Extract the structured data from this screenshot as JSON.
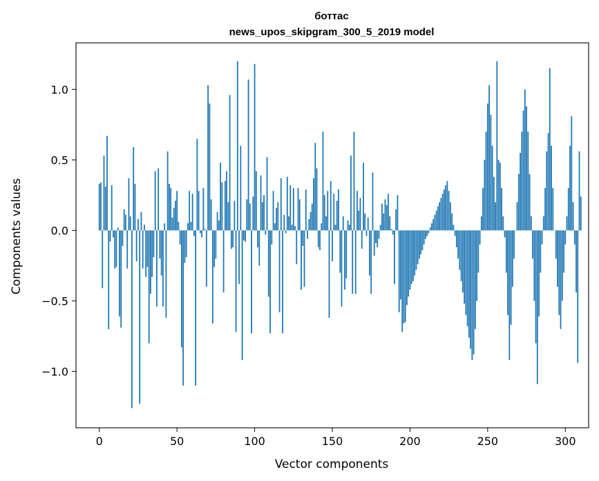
{
  "chart_data": {
    "type": "bar",
    "title": "боттас",
    "subtitle": "news_upos_skipgram_300_5_2019 model",
    "xlabel": "Vector components",
    "ylabel": "Components values",
    "xlim": [
      -15,
      315
    ],
    "ylim": [
      -1.4,
      1.33
    ],
    "xticks": [
      0,
      50,
      100,
      150,
      200,
      250,
      300
    ],
    "xtick_labels": [
      "0",
      "50",
      "100",
      "150",
      "200",
      "250",
      "300"
    ],
    "yticks": [
      -1.0,
      -0.5,
      0.0,
      0.5,
      1.0
    ],
    "ytick_labels": [
      "−1.0",
      "−0.5",
      "0.0",
      "0.5",
      "1.0"
    ],
    "grid": false,
    "bar_color": "#1f77b4",
    "values": [
      0.33,
      0.34,
      -0.41,
      0.53,
      0.31,
      0.67,
      -0.7,
      -0.08,
      0.32,
      -0.05,
      -0.27,
      -0.26,
      0.02,
      -0.61,
      -0.69,
      -0.11,
      0.15,
      0.11,
      -0.27,
      0.37,
      0.1,
      -1.26,
      0.59,
      0.33,
      -0.22,
      0.08,
      -1.23,
      0.13,
      -0.27,
      0.04,
      -0.33,
      -0.26,
      -0.8,
      -0.45,
      -0.33,
      -0.19,
      0.42,
      -0.54,
      0.44,
      -0.2,
      -0.32,
      -0.54,
      0.05,
      -0.62,
      0.56,
      0.33,
      0.3,
      0.09,
      0.16,
      0.21,
      0.28,
      0.06,
      -0.1,
      -0.83,
      -1.1,
      -0.23,
      -0.19,
      0.05,
      0.28,
      0.06,
      0.26,
      -0.04,
      -1.1,
      0.65,
      0.28,
      -0.02,
      -0.05,
      0.3,
      0.01,
      -0.4,
      1.03,
      0.9,
      0.22,
      -0.66,
      -0.26,
      -0.2,
      0.13,
      0.07,
      0.48,
      0.34,
      -0.44,
      0.35,
      0.42,
      0.2,
      0.96,
      -0.13,
      -0.12,
      0.21,
      -0.72,
      1.2,
      -0.38,
      0.6,
      -0.92,
      -0.07,
      -0.08,
      0.22,
      1.07,
      0.19,
      -0.73,
      0.24,
      1.18,
      0.42,
      -0.12,
      -0.25,
      0.39,
      0.2,
      0.25,
      -0.03,
      0.52,
      -0.47,
      -0.73,
      -0.1,
      0.28,
      0.05,
      0.16,
      0.2,
      -0.58,
      0.37,
      -0.73,
      0.11,
      -0.02,
      0.38,
      0.1,
      0.32,
      0.04,
      0.3,
      0.03,
      -0.24,
      0.3,
      0.22,
      -0.42,
      -0.11,
      -0.4,
      0.29,
      -0.06,
      0.08,
      0.13,
      0.19,
      0.37,
      0.62,
      0.44,
      -0.12,
      -0.14,
      0.05,
      0.7,
      0.25,
      0.1,
      0.28,
      -0.62,
      0.35,
      -0.22,
      0.26,
      0.04,
      0.21,
      0.29,
      -0.3,
      -0.54,
      0.1,
      -0.42,
      -0.34,
      0.07,
      0.04,
      0.53,
      -0.45,
      0.7,
      -0.45,
      0.28,
      0.14,
      0.23,
      -0.13,
      0.48,
      0.12,
      -0.04,
      0.09,
      -0.32,
      -0.45,
      0.41,
      -0.18,
      -0.09,
      -0.12,
      -0.06,
      0.04,
      0.19,
      0.12,
      0.22,
      0.18,
      0.26,
      0.1,
      0.01,
      -0.03,
      -0.38,
      0.15,
      0.25,
      -0.58,
      -0.49,
      -0.72,
      -0.66,
      -0.65,
      -0.53,
      -0.47,
      -0.42,
      -0.38,
      -0.36,
      -0.32,
      -0.28,
      -0.24,
      -0.2,
      -0.17,
      -0.14,
      -0.1,
      -0.06,
      -0.04,
      -0.02,
      0.02,
      0.05,
      0.08,
      0.11,
      0.14,
      0.17,
      0.2,
      0.23,
      0.26,
      0.29,
      0.32,
      0.35,
      0.28,
      0.2,
      0.12,
      0.04,
      -0.04,
      -0.12,
      -0.2,
      -0.28,
      -0.36,
      -0.44,
      -0.52,
      -0.6,
      -0.68,
      -0.76,
      -0.84,
      -0.92,
      -0.88,
      -0.7,
      -0.5,
      -0.3,
      -0.1,
      0.1,
      0.3,
      0.5,
      0.7,
      0.9,
      1.03,
      0.82,
      0.6,
      0.38,
      0.2,
      1.2,
      0.5,
      0.48,
      0.3,
      0.1,
      -0.05,
      -0.3,
      -0.6,
      -0.92,
      -0.67,
      -0.4,
      -0.2,
      0.0,
      0.2,
      0.4,
      0.55,
      0.7,
      0.85,
      1.0,
      0.88,
      0.7,
      0.4,
      0.1,
      -0.2,
      -0.5,
      -0.8,
      -1.09,
      -0.61,
      -0.3,
      -0.1,
      0.1,
      0.3,
      0.56,
      0.69,
      1.15,
      0.6,
      0.3,
      0.0,
      -0.2,
      -0.4,
      -0.6,
      -0.7,
      -0.5,
      -0.3,
      -0.1,
      0.1,
      0.3,
      0.6,
      0.81,
      0.2,
      -0.1,
      -0.44,
      -0.94,
      0.56,
      0.24
    ],
    "bar_values_note": ""
  }
}
